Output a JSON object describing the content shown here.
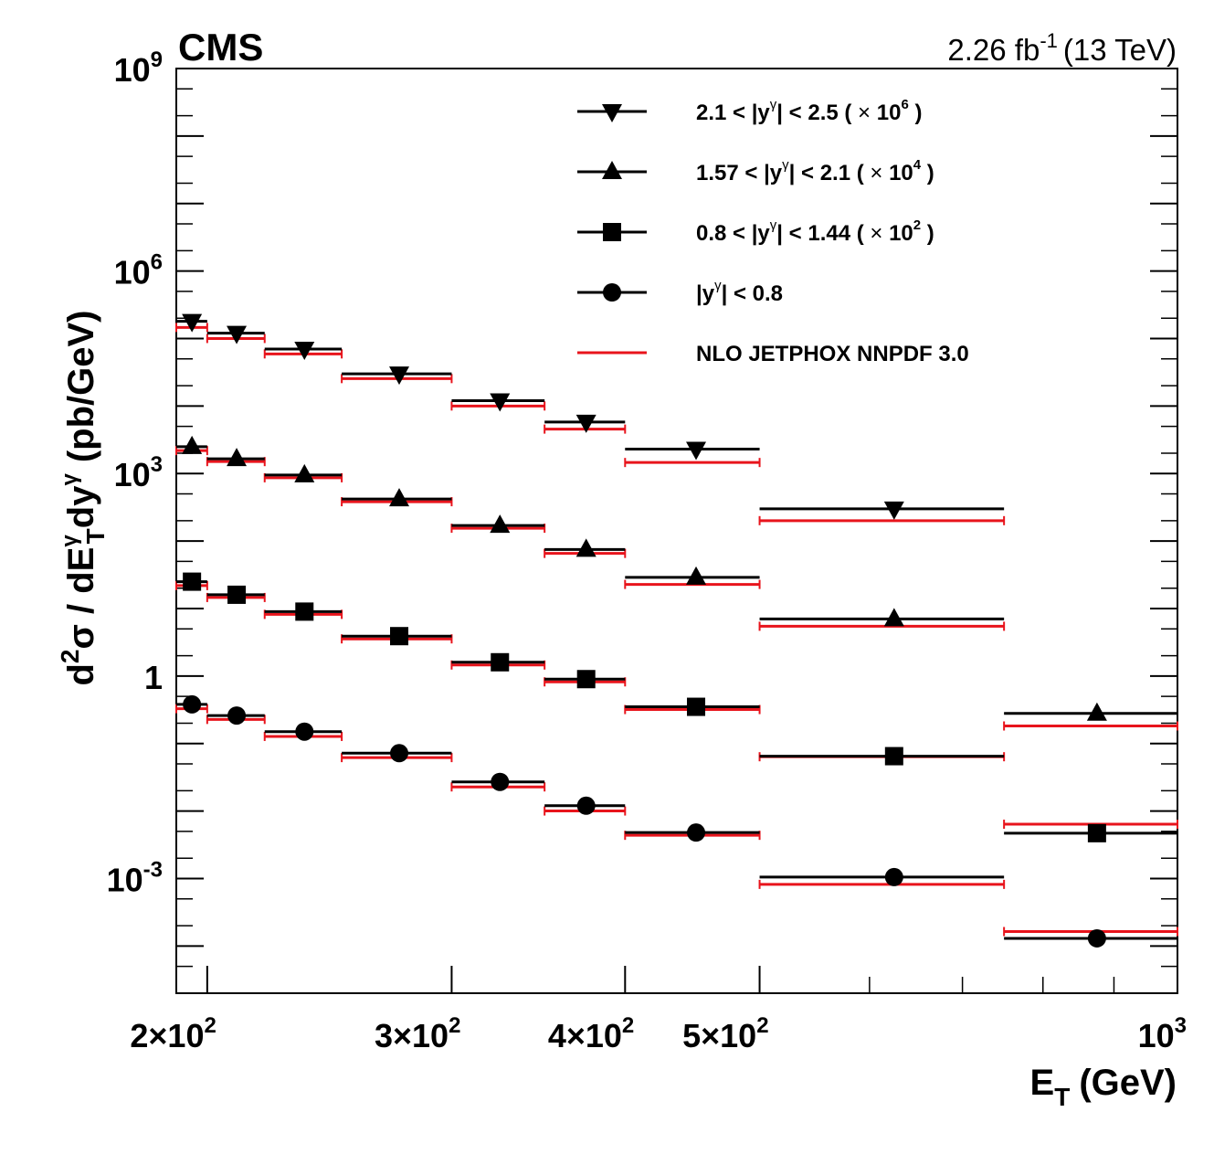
{
  "chart_data": {
    "type": "scatter",
    "title": "CMS",
    "lumi": {
      "value": "2.26 fb",
      "sup": "-1",
      "energy": "(13 TeV)"
    },
    "xlabel": {
      "main": "E",
      "sub": "T",
      "unit": "(GeV)"
    },
    "ylabel": {
      "p1": "d",
      "p2": "2",
      "p3": "σ / dE",
      "p4": "γ",
      "p5": "T",
      "p6": "dy",
      "p7": "γ",
      "p8": "(pb/GeV)"
    },
    "xscale": "log",
    "yscale": "log",
    "xlim": [
      190,
      1000
    ],
    "ylim": [
      2e-05,
      1000000000
    ],
    "x_ticks": [
      {
        "value": 200,
        "label": "2×10",
        "exp": "2"
      },
      {
        "value": 300,
        "label": "3×10",
        "exp": "2"
      },
      {
        "value": 400,
        "label": "4×10",
        "exp": "2"
      },
      {
        "value": 500,
        "label": "5×10",
        "exp": "2"
      },
      {
        "value": 1000,
        "label": "10",
        "exp": "3"
      }
    ],
    "y_ticks": [
      {
        "value": 1000000000,
        "base": "10",
        "exp": "9"
      },
      {
        "value": 1000000,
        "base": "10",
        "exp": "6"
      },
      {
        "value": 1000,
        "base": "10",
        "exp": "3"
      },
      {
        "value": 1,
        "base": "1",
        "exp": ""
      },
      {
        "value": 0.001,
        "base": "10",
        "exp": "-3"
      }
    ],
    "bins": [
      [
        190,
        200
      ],
      [
        200,
        220
      ],
      [
        220,
        250
      ],
      [
        250,
        300
      ],
      [
        300,
        350
      ],
      [
        350,
        400
      ],
      [
        400,
        500
      ],
      [
        500,
        750
      ],
      [
        750,
        1000
      ]
    ],
    "centers": [
      195,
      210,
      235,
      275,
      325,
      375,
      450,
      625,
      875
    ],
    "series": [
      {
        "name": "2.1 < |y^γ| < 2.5 (×10^6)",
        "marker": "triangle-down",
        "data": [
          180000,
          120000,
          70000,
          30000,
          12000,
          5800,
          2300,
          300,
          null
        ],
        "theory": [
          160000,
          110000,
          65000,
          28000,
          11000,
          5000,
          1600,
          220,
          null
        ]
      },
      {
        "name": "1.57 < |y^γ| < 2.1 (×10^4)",
        "marker": "triangle-up",
        "data": [
          2500,
          1650,
          950,
          420,
          170,
          75,
          29,
          7,
          0.28
        ],
        "theory": [
          2400,
          1650,
          950,
          420,
          170,
          72,
          25,
          6,
          0.2
        ]
      },
      {
        "name": "0.8 < |y^γ| < 1.44 (×10^2)",
        "marker": "square",
        "data": [
          25,
          16,
          9,
          3.9,
          1.6,
          0.9,
          0.35,
          0.065,
          0.0047
        ],
        "theory": [
          24,
          16,
          9,
          3.9,
          1.6,
          0.9,
          0.35,
          0.07,
          0.007
        ]
      },
      {
        "name": "|y^γ| < 0.8",
        "marker": "circle",
        "data": [
          0.38,
          0.26,
          0.15,
          0.072,
          0.027,
          0.012,
          0.0048,
          0.00105,
          0.00013
        ],
        "theory": [
          0.36,
          0.25,
          0.14,
          0.068,
          0.025,
          0.011,
          0.0048,
          0.0009,
          0.00018
        ]
      }
    ],
    "theory_name": "NLO JETPHOX NNPDF 3.0",
    "legend": [
      {
        "marker": "triangle-down",
        "text": "2.1 < |y",
        "sup": "γ",
        "text2": "| < 2.5 (",
        "mult": "×",
        "base": "10",
        "exp": "6",
        "close": ")"
      },
      {
        "marker": "triangle-up",
        "text": "1.57 < |y",
        "sup": "γ",
        "text2": "| < 2.1 (",
        "mult": "×",
        "base": "10",
        "exp": "4",
        "close": ")"
      },
      {
        "marker": "square",
        "text": "0.8 < |y",
        "sup": "γ",
        "text2": "| < 1.44 (",
        "mult": "×",
        "base": "10",
        "exp": "2",
        "close": ")"
      },
      {
        "marker": "circle",
        "text": "|y",
        "sup": "γ",
        "text2": "| < 0.8",
        "mult": "",
        "base": "",
        "exp": "",
        "close": ""
      },
      {
        "marker": "line",
        "text": "NLO JETPHOX NNPDF 3.0",
        "sup": "",
        "text2": "",
        "mult": "",
        "base": "",
        "exp": "",
        "close": ""
      }
    ],
    "legend_position": "top-right",
    "colors": {
      "data": "#000000",
      "theory": "#e8141c"
    }
  }
}
